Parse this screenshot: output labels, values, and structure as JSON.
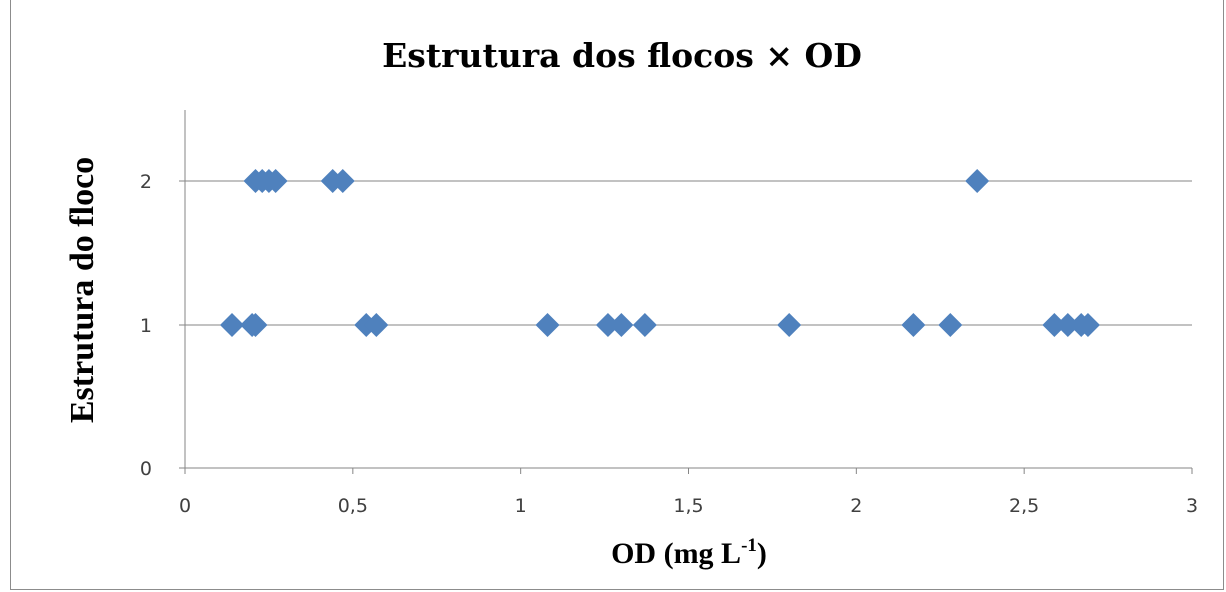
{
  "chart_data": {
    "type": "scatter",
    "title": "Estrutura dos flocos × OD",
    "xlabel_main": "OD (mg L",
    "xlabel_sup": "-1",
    "xlabel_end": ")",
    "ylabel": "Estrutura do floco",
    "xlim": [
      0,
      3
    ],
    "ylim": [
      0,
      2.5
    ],
    "x_ticks": [
      0,
      0.5,
      1,
      1.5,
      2,
      2.5,
      3
    ],
    "x_tick_labels": [
      "0",
      "0,5",
      "1",
      "1,5",
      "2",
      "2,5",
      "3"
    ],
    "y_ticks": [
      0,
      1,
      2
    ],
    "y_tick_labels": [
      "0",
      "1",
      "2"
    ],
    "grid": "horizontal",
    "marker": "diamond",
    "color": "#4F81BD",
    "points": [
      {
        "x": 0.21,
        "y": 2
      },
      {
        "x": 0.23,
        "y": 2
      },
      {
        "x": 0.25,
        "y": 2
      },
      {
        "x": 0.27,
        "y": 2
      },
      {
        "x": 0.44,
        "y": 2
      },
      {
        "x": 0.47,
        "y": 2
      },
      {
        "x": 2.36,
        "y": 2
      },
      {
        "x": 0.14,
        "y": 1
      },
      {
        "x": 0.2,
        "y": 1
      },
      {
        "x": 0.21,
        "y": 1
      },
      {
        "x": 0.54,
        "y": 1
      },
      {
        "x": 0.57,
        "y": 1
      },
      {
        "x": 1.08,
        "y": 1
      },
      {
        "x": 1.26,
        "y": 1
      },
      {
        "x": 1.3,
        "y": 1
      },
      {
        "x": 1.37,
        "y": 1
      },
      {
        "x": 1.8,
        "y": 1
      },
      {
        "x": 2.17,
        "y": 1
      },
      {
        "x": 2.28,
        "y": 1
      },
      {
        "x": 2.59,
        "y": 1
      },
      {
        "x": 2.63,
        "y": 1
      },
      {
        "x": 2.67,
        "y": 1
      },
      {
        "x": 2.69,
        "y": 1
      }
    ]
  }
}
